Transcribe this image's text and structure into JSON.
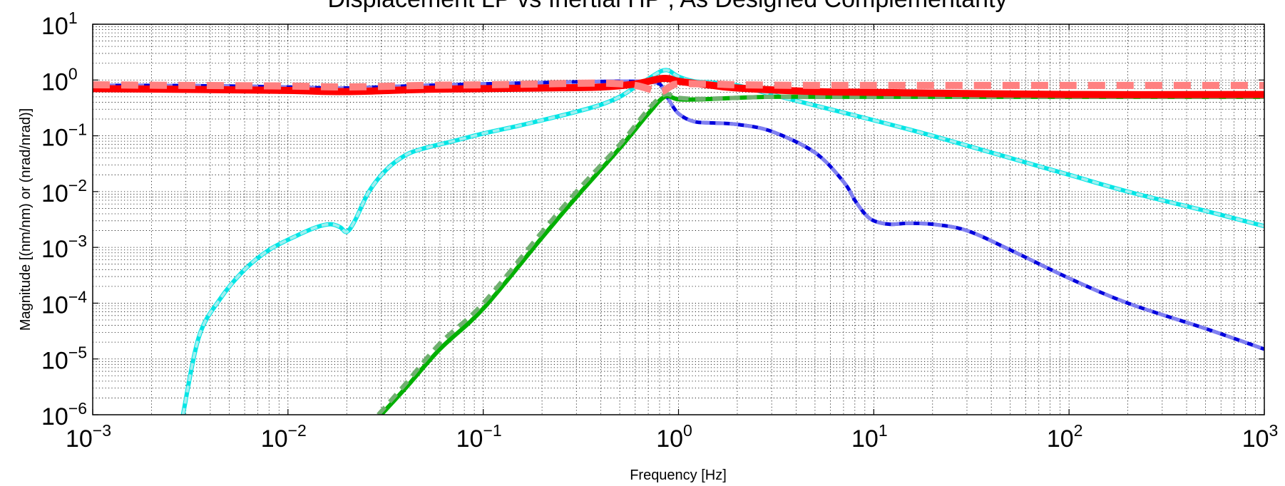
{
  "chart_data": {
    "type": "line",
    "title": "Displacement LP vs Inertial HP , As Designed Complementarity",
    "xlabel": "Frequency [Hz]",
    "ylabel": "Magnitude [(nm/nm) or (nrad/nrad)]",
    "x_scale": "log",
    "y_scale": "log",
    "xlim": [
      0.001,
      1000
    ],
    "ylim": [
      1e-06,
      10
    ],
    "grid": true,
    "x_ticks": [
      {
        "base": "10",
        "exp": "−3"
      },
      {
        "base": "10",
        "exp": "−2"
      },
      {
        "base": "10",
        "exp": "−1"
      },
      {
        "base": "10",
        "exp": "0"
      },
      {
        "base": "10",
        "exp": "1"
      },
      {
        "base": "10",
        "exp": "2"
      },
      {
        "base": "10",
        "exp": "3"
      }
    ],
    "y_ticks": [
      {
        "base": "10",
        "exp": "1"
      },
      {
        "base": "10",
        "exp": "0"
      },
      {
        "base": "10",
        "exp": "−1"
      },
      {
        "base": "10",
        "exp": "−2"
      },
      {
        "base": "10",
        "exp": "−3"
      },
      {
        "base": "10",
        "exp": "−4"
      },
      {
        "base": "10",
        "exp": "−5"
      },
      {
        "base": "10",
        "exp": "−6"
      }
    ],
    "series": [
      {
        "color": "#00e5e5",
        "style": "solid",
        "width": 6,
        "points": [
          [
            0.0029,
            1e-06
          ],
          [
            0.0035,
            2.5e-05
          ],
          [
            0.0045,
            0.00012
          ],
          [
            0.006,
            0.0004
          ],
          [
            0.008,
            0.0009
          ],
          [
            0.011,
            0.0016
          ],
          [
            0.014,
            0.0023
          ],
          [
            0.0165,
            0.0026
          ],
          [
            0.0185,
            0.0023
          ],
          [
            0.02,
            0.0019
          ],
          [
            0.022,
            0.003
          ],
          [
            0.026,
            0.01
          ],
          [
            0.032,
            0.025
          ],
          [
            0.04,
            0.045
          ],
          [
            0.05,
            0.06
          ],
          [
            0.07,
            0.08
          ],
          [
            0.1,
            0.11
          ],
          [
            0.15,
            0.15
          ],
          [
            0.2,
            0.19
          ],
          [
            0.3,
            0.27
          ],
          [
            0.4,
            0.36
          ],
          [
            0.5,
            0.5
          ],
          [
            0.6,
            0.75
          ],
          [
            0.7,
            1.05
          ],
          [
            0.8,
            1.4
          ],
          [
            0.85,
            1.5
          ],
          [
            0.9,
            1.45
          ],
          [
            1,
            1.15
          ],
          [
            1.2,
            0.95
          ],
          [
            1.5,
            0.9
          ],
          [
            2,
            0.8
          ],
          [
            3,
            0.55
          ],
          [
            5,
            0.35
          ],
          [
            10,
            0.19
          ],
          [
            20,
            0.1
          ],
          [
            50,
            0.04
          ],
          [
            100,
            0.02
          ],
          [
            200,
            0.01
          ],
          [
            500,
            0.0045
          ],
          [
            1000,
            0.0024
          ]
        ]
      },
      {
        "color": "#9ef0f0",
        "style": "dashed",
        "width": 4,
        "points": [
          [
            0.0029,
            1e-06
          ],
          [
            0.0035,
            2.5e-05
          ],
          [
            0.0045,
            0.00012
          ],
          [
            0.006,
            0.0004
          ],
          [
            0.008,
            0.0009
          ],
          [
            0.011,
            0.0016
          ],
          [
            0.014,
            0.0023
          ],
          [
            0.0165,
            0.0026
          ],
          [
            0.0185,
            0.0023
          ],
          [
            0.02,
            0.0019
          ],
          [
            0.022,
            0.003
          ],
          [
            0.026,
            0.01
          ],
          [
            0.032,
            0.025
          ],
          [
            0.04,
            0.045
          ],
          [
            0.05,
            0.06
          ],
          [
            0.07,
            0.08
          ],
          [
            0.1,
            0.11
          ],
          [
            0.15,
            0.15
          ],
          [
            0.2,
            0.19
          ],
          [
            0.3,
            0.27
          ],
          [
            0.4,
            0.36
          ],
          [
            0.5,
            0.5
          ],
          [
            0.6,
            0.75
          ],
          [
            0.7,
            1.05
          ],
          [
            0.8,
            1.4
          ],
          [
            0.85,
            1.5
          ],
          [
            0.9,
            1.45
          ],
          [
            1,
            1.15
          ],
          [
            1.2,
            0.95
          ],
          [
            1.5,
            0.9
          ],
          [
            2,
            0.8
          ],
          [
            3,
            0.55
          ],
          [
            5,
            0.35
          ],
          [
            10,
            0.19
          ],
          [
            20,
            0.1
          ],
          [
            50,
            0.04
          ],
          [
            100,
            0.02
          ],
          [
            200,
            0.01
          ],
          [
            500,
            0.0045
          ],
          [
            1000,
            0.0024
          ]
        ]
      },
      {
        "color": "#0000dd",
        "style": "solid",
        "width": 5,
        "points": [
          [
            0.001,
            0.8
          ],
          [
            0.002,
            0.8
          ],
          [
            0.005,
            0.78
          ],
          [
            0.01,
            0.75
          ],
          [
            0.02,
            0.72
          ],
          [
            0.05,
            0.8
          ],
          [
            0.1,
            0.85
          ],
          [
            0.2,
            0.9
          ],
          [
            0.5,
            0.95
          ],
          [
            0.7,
            0.92
          ],
          [
            0.8,
            0.85
          ],
          [
            0.85,
            0.6
          ],
          [
            0.9,
            0.42
          ],
          [
            1,
            0.25
          ],
          [
            1.2,
            0.18
          ],
          [
            1.5,
            0.17
          ],
          [
            2,
            0.16
          ],
          [
            3,
            0.12
          ],
          [
            5,
            0.05
          ],
          [
            7,
            0.015
          ],
          [
            8,
            0.007
          ],
          [
            9,
            0.004
          ],
          [
            10,
            0.003
          ],
          [
            12,
            0.0026
          ],
          [
            15,
            0.0027
          ],
          [
            20,
            0.0026
          ],
          [
            30,
            0.002
          ],
          [
            50,
            0.0009
          ],
          [
            100,
            0.00028
          ],
          [
            200,
            0.0001
          ],
          [
            500,
            3.5e-05
          ],
          [
            1000,
            1.5e-05
          ]
        ]
      },
      {
        "color": "#8080f0",
        "style": "dashed",
        "width": 5,
        "points": [
          [
            0.001,
            0.8
          ],
          [
            0.002,
            0.8
          ],
          [
            0.005,
            0.78
          ],
          [
            0.01,
            0.75
          ],
          [
            0.02,
            0.72
          ],
          [
            0.05,
            0.8
          ],
          [
            0.1,
            0.85
          ],
          [
            0.2,
            0.9
          ],
          [
            0.5,
            0.95
          ],
          [
            0.7,
            0.92
          ],
          [
            0.8,
            0.85
          ],
          [
            0.85,
            0.6
          ],
          [
            0.9,
            0.42
          ],
          [
            1,
            0.25
          ],
          [
            1.2,
            0.18
          ],
          [
            1.5,
            0.17
          ],
          [
            2,
            0.16
          ],
          [
            3,
            0.12
          ],
          [
            5,
            0.05
          ],
          [
            7,
            0.015
          ],
          [
            8,
            0.007
          ],
          [
            9,
            0.004
          ],
          [
            10,
            0.003
          ],
          [
            12,
            0.0026
          ],
          [
            15,
            0.0027
          ],
          [
            20,
            0.0026
          ],
          [
            30,
            0.002
          ],
          [
            50,
            0.0009
          ],
          [
            100,
            0.00028
          ],
          [
            200,
            0.0001
          ],
          [
            500,
            3.5e-05
          ],
          [
            1000,
            1.5e-05
          ]
        ]
      },
      {
        "color": "#00b000",
        "style": "solid",
        "width": 6,
        "points": [
          [
            0.03,
            1e-06
          ],
          [
            0.04,
            3e-06
          ],
          [
            0.06,
            1.5e-05
          ],
          [
            0.1,
            8e-05
          ],
          [
            0.2,
            0.0015
          ],
          [
            0.3,
            0.008
          ],
          [
            0.5,
            0.06
          ],
          [
            0.7,
            0.25
          ],
          [
            0.85,
            0.5
          ],
          [
            1,
            0.45
          ],
          [
            1.3,
            0.45
          ],
          [
            2,
            0.48
          ],
          [
            3,
            0.5
          ],
          [
            5,
            0.5
          ],
          [
            10,
            0.5
          ],
          [
            100,
            0.5
          ],
          [
            1000,
            0.5
          ]
        ]
      },
      {
        "color": "#70b070",
        "style": "dashed",
        "width": 6,
        "points": [
          [
            0.029,
            1e-06
          ],
          [
            0.04,
            3.6e-06
          ],
          [
            0.06,
            1.9e-05
          ],
          [
            0.1,
            0.0001
          ],
          [
            0.2,
            0.0019
          ],
          [
            0.3,
            0.01
          ],
          [
            0.5,
            0.07
          ],
          [
            0.7,
            0.3
          ],
          [
            0.85,
            0.55
          ],
          [
            1,
            0.48
          ],
          [
            1.3,
            0.46
          ],
          [
            2,
            0.48
          ],
          [
            3,
            0.5
          ],
          [
            5,
            0.5
          ],
          [
            10,
            0.5
          ],
          [
            100,
            0.5
          ],
          [
            1000,
            0.5
          ]
        ]
      },
      {
        "color": "#ff0000",
        "style": "solid",
        "width": 10,
        "points": [
          [
            0.001,
            0.7
          ],
          [
            0.003,
            0.68
          ],
          [
            0.01,
            0.65
          ],
          [
            0.02,
            0.62
          ],
          [
            0.05,
            0.68
          ],
          [
            0.1,
            0.7
          ],
          [
            0.2,
            0.72
          ],
          [
            0.4,
            0.75
          ],
          [
            0.6,
            0.85
          ],
          [
            0.8,
            1.05
          ],
          [
            0.9,
            1.05
          ],
          [
            1,
            0.95
          ],
          [
            1.5,
            0.8
          ],
          [
            2,
            0.72
          ],
          [
            5,
            0.62
          ],
          [
            10,
            0.6
          ],
          [
            100,
            0.55
          ],
          [
            1000,
            0.55
          ]
        ]
      },
      {
        "color": "#ff8080",
        "style": "dashed",
        "width": 10,
        "points": [
          [
            0.001,
            0.82
          ],
          [
            0.003,
            0.8
          ],
          [
            0.01,
            0.78
          ],
          [
            0.02,
            0.75
          ],
          [
            0.05,
            0.8
          ],
          [
            0.1,
            0.82
          ],
          [
            0.2,
            0.85
          ],
          [
            0.4,
            0.88
          ],
          [
            0.6,
            0.8
          ],
          [
            0.8,
            0.62
          ],
          [
            0.9,
            0.75
          ],
          [
            1,
            0.85
          ],
          [
            1.5,
            0.85
          ],
          [
            2,
            0.82
          ],
          [
            5,
            0.8
          ],
          [
            10,
            0.8
          ],
          [
            100,
            0.8
          ],
          [
            1000,
            0.8
          ]
        ]
      }
    ]
  }
}
